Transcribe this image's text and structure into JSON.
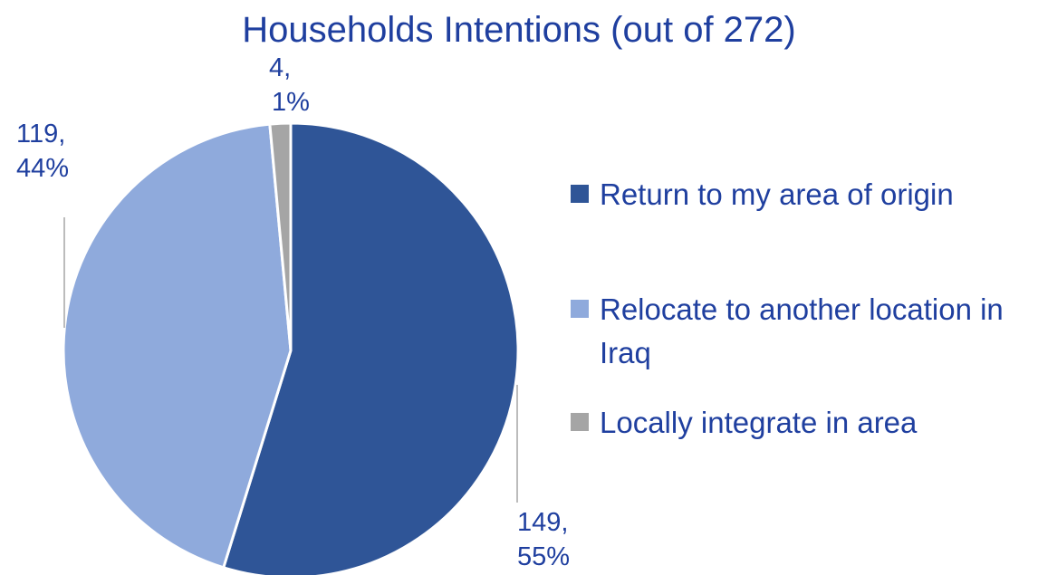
{
  "chart_data": {
    "type": "pie",
    "title": "Households Intentions (out of 272)",
    "categories": [
      "Return to my area of origin",
      "Relocate to another location in Iraq",
      "Locally integrate in area"
    ],
    "values": [
      149,
      119,
      4
    ],
    "value_labels": [
      [
        "149,",
        "55%"
      ],
      [
        "119,",
        "44%"
      ],
      [
        "4,",
        "1%"
      ]
    ],
    "colors": [
      "#2f5597",
      "#8faadc",
      "#a5a5a5"
    ],
    "legend": "right"
  }
}
